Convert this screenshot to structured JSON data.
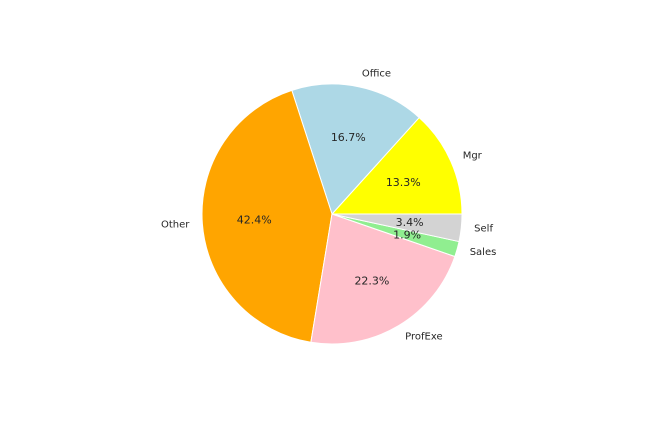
{
  "chart_data": {
    "type": "pie",
    "title": "",
    "start_angle_deg": 0,
    "direction": "counterclockwise",
    "legend": "none",
    "slices": [
      {
        "label": "Mgr",
        "value": 13.3,
        "pct_label": "13.3%",
        "color": "#ffff00"
      },
      {
        "label": "Office",
        "value": 16.7,
        "pct_label": "16.7%",
        "color": "#add8e6"
      },
      {
        "label": "Other",
        "value": 42.4,
        "pct_label": "42.4%",
        "color": "#ffa500"
      },
      {
        "label": "ProfExe",
        "value": 22.3,
        "pct_label": "22.3%",
        "color": "#ffc0cb"
      },
      {
        "label": "Sales",
        "value": 1.9,
        "pct_label": "1.9%",
        "color": "#90ee90"
      },
      {
        "label": "Self",
        "value": 3.4,
        "pct_label": "3.4%",
        "color": "#d3d3d3"
      }
    ]
  }
}
